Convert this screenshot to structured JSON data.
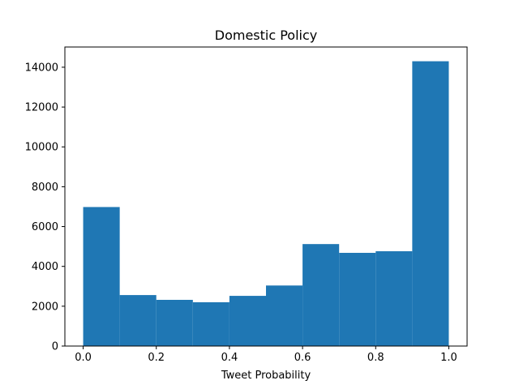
{
  "chart_data": {
    "type": "bar",
    "title": "Domestic Policy",
    "xlabel": "Tweet Probability",
    "ylabel": "",
    "bin_edges": [
      0.0,
      0.1,
      0.2,
      0.3,
      0.4,
      0.5,
      0.6,
      0.7,
      0.8,
      0.9,
      1.0
    ],
    "values": [
      6980,
      2560,
      2320,
      2200,
      2520,
      3040,
      5120,
      4680,
      4760,
      14300
    ],
    "xlim": [
      -0.05,
      1.05
    ],
    "ylim": [
      0,
      15015
    ],
    "xticks": [
      0.0,
      0.2,
      0.4,
      0.6,
      0.8,
      1.0
    ],
    "xtick_labels": [
      "0.0",
      "0.2",
      "0.4",
      "0.6",
      "0.8",
      "1.0"
    ],
    "yticks": [
      0,
      2000,
      4000,
      6000,
      8000,
      10000,
      12000,
      14000
    ],
    "ytick_labels": [
      "0",
      "2000",
      "4000",
      "6000",
      "8000",
      "10000",
      "12000",
      "14000"
    ],
    "grid": false,
    "bar_color": "#1f77b4"
  }
}
